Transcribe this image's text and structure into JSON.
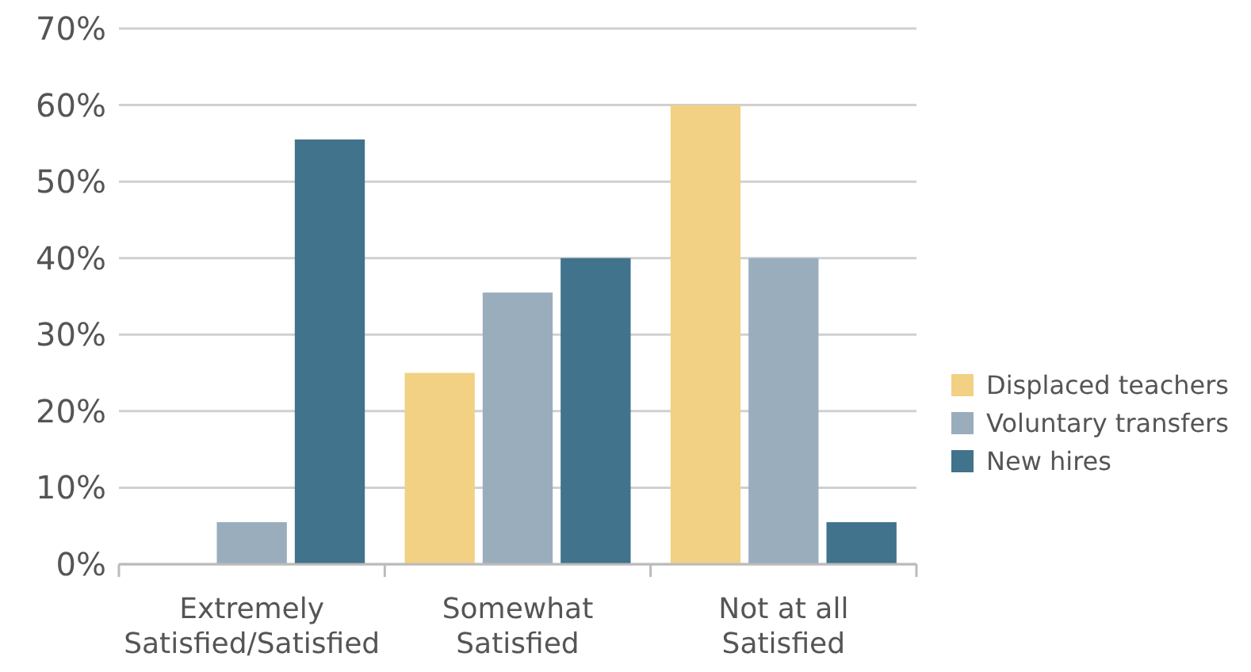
{
  "chart_data": {
    "type": "bar",
    "categories": [
      "Extremely\nSatisfied/Satisfied",
      "Somewhat\nSatisfied",
      "Not at all\nSatisfied"
    ],
    "series": [
      {
        "name": "Displaced teachers",
        "color": "#f2d184",
        "values": [
          0,
          25,
          60
        ]
      },
      {
        "name": "Voluntary transfers",
        "color": "#9aadbd",
        "values": [
          5.5,
          35.5,
          40
        ]
      },
      {
        "name": "New hires",
        "color": "#41738c",
        "values": [
          55.5,
          40,
          5.5
        ]
      }
    ],
    "ylim": [
      0,
      70
    ],
    "yticks": [
      {
        "value": 0,
        "label": "0%"
      },
      {
        "value": 10,
        "label": "10%"
      },
      {
        "value": 20,
        "label": "20%"
      },
      {
        "value": 30,
        "label": "30%"
      },
      {
        "value": 40,
        "label": "40%"
      },
      {
        "value": 50,
        "label": "50%"
      },
      {
        "value": 60,
        "label": "60%"
      },
      {
        "value": 70,
        "label": "70%"
      }
    ],
    "grid": "y",
    "legend": "right"
  }
}
